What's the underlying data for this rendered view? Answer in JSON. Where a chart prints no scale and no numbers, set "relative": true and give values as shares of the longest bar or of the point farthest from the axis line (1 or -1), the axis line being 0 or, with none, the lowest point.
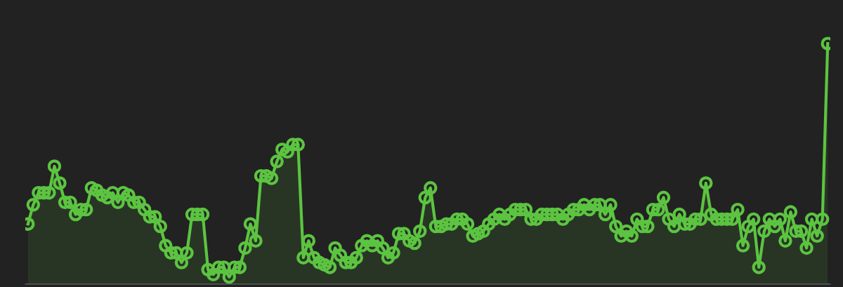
{
  "chart_data": {
    "type": "area",
    "relative": true,
    "marker": "circle",
    "line_style": "solid",
    "legend": false,
    "grid": false,
    "categories": [
      null,
      null,
      null,
      null,
      null,
      null,
      null,
      null,
      null,
      null,
      null,
      null,
      null,
      null,
      null,
      null,
      null,
      null,
      null,
      null,
      null,
      null,
      null,
      null,
      null,
      null,
      null,
      null,
      null,
      null,
      null,
      null,
      null,
      null,
      null,
      null,
      null,
      null,
      null,
      null,
      null,
      null,
      null,
      null,
      null,
      null,
      null,
      null,
      null,
      null,
      null,
      null,
      null,
      null,
      null,
      null,
      null,
      null,
      null,
      null,
      null,
      null,
      null,
      null,
      null,
      null,
      null,
      null,
      null,
      null,
      null,
      null,
      null,
      null,
      null,
      null,
      null,
      null,
      null,
      null,
      null,
      null,
      null,
      null,
      null,
      null,
      null,
      null,
      null,
      null,
      null,
      null,
      null,
      null,
      null,
      null,
      null,
      null,
      null,
      null,
      null,
      null,
      null,
      null,
      null,
      null,
      null,
      null,
      null,
      null,
      null,
      null,
      null,
      null,
      null,
      null,
      null,
      null,
      null,
      null,
      null,
      null,
      null,
      null,
      null,
      null,
      null,
      null,
      null,
      null,
      null,
      null,
      null,
      null,
      null,
      null,
      null,
      null,
      null,
      null,
      null,
      null,
      null,
      null,
      null,
      null,
      null,
      null,
      null,
      null,
      null,
      null
    ],
    "series": [
      {
        "color": "#5cc441",
        "values": [
          0.25,
          0.33,
          0.38,
          0.38,
          0.38,
          0.49,
          0.42,
          0.34,
          0.34,
          0.29,
          0.31,
          0.31,
          0.4,
          0.39,
          0.37,
          0.36,
          0.38,
          0.34,
          0.38,
          0.37,
          0.34,
          0.34,
          0.31,
          0.28,
          0.28,
          0.24,
          0.16,
          0.13,
          0.13,
          0.09,
          0.13,
          0.29,
          0.29,
          0.29,
          0.06,
          0.04,
          0.07,
          0.07,
          0.03,
          0.07,
          0.07,
          0.15,
          0.25,
          0.18,
          0.45,
          0.45,
          0.44,
          0.51,
          0.56,
          0.55,
          0.58,
          0.58,
          0.11,
          0.18,
          0.11,
          0.09,
          0.08,
          0.07,
          0.15,
          0.12,
          0.09,
          0.09,
          0.11,
          0.16,
          0.18,
          0.16,
          0.18,
          0.15,
          0.11,
          0.13,
          0.21,
          0.21,
          0.18,
          0.17,
          0.22,
          0.36,
          0.4,
          0.24,
          0.24,
          0.25,
          0.25,
          0.27,
          0.27,
          0.25,
          0.2,
          0.21,
          0.22,
          0.25,
          0.27,
          0.29,
          0.27,
          0.29,
          0.31,
          0.31,
          0.31,
          0.27,
          0.27,
          0.29,
          0.29,
          0.29,
          0.29,
          0.27,
          0.29,
          0.31,
          0.31,
          0.33,
          0.31,
          0.33,
          0.33,
          0.29,
          0.33,
          0.24,
          0.2,
          0.22,
          0.2,
          0.27,
          0.24,
          0.24,
          0.31,
          0.31,
          0.36,
          0.27,
          0.24,
          0.29,
          0.25,
          0.25,
          0.27,
          0.27,
          0.42,
          0.29,
          0.27,
          0.27,
          0.27,
          0.27,
          0.31,
          0.16,
          0.24,
          0.27,
          0.07,
          0.22,
          0.27,
          0.24,
          0.27,
          0.18,
          0.3,
          0.22,
          0.22,
          0.15,
          0.27,
          0.2,
          0.27,
          1
        ]
      }
    ]
  }
}
